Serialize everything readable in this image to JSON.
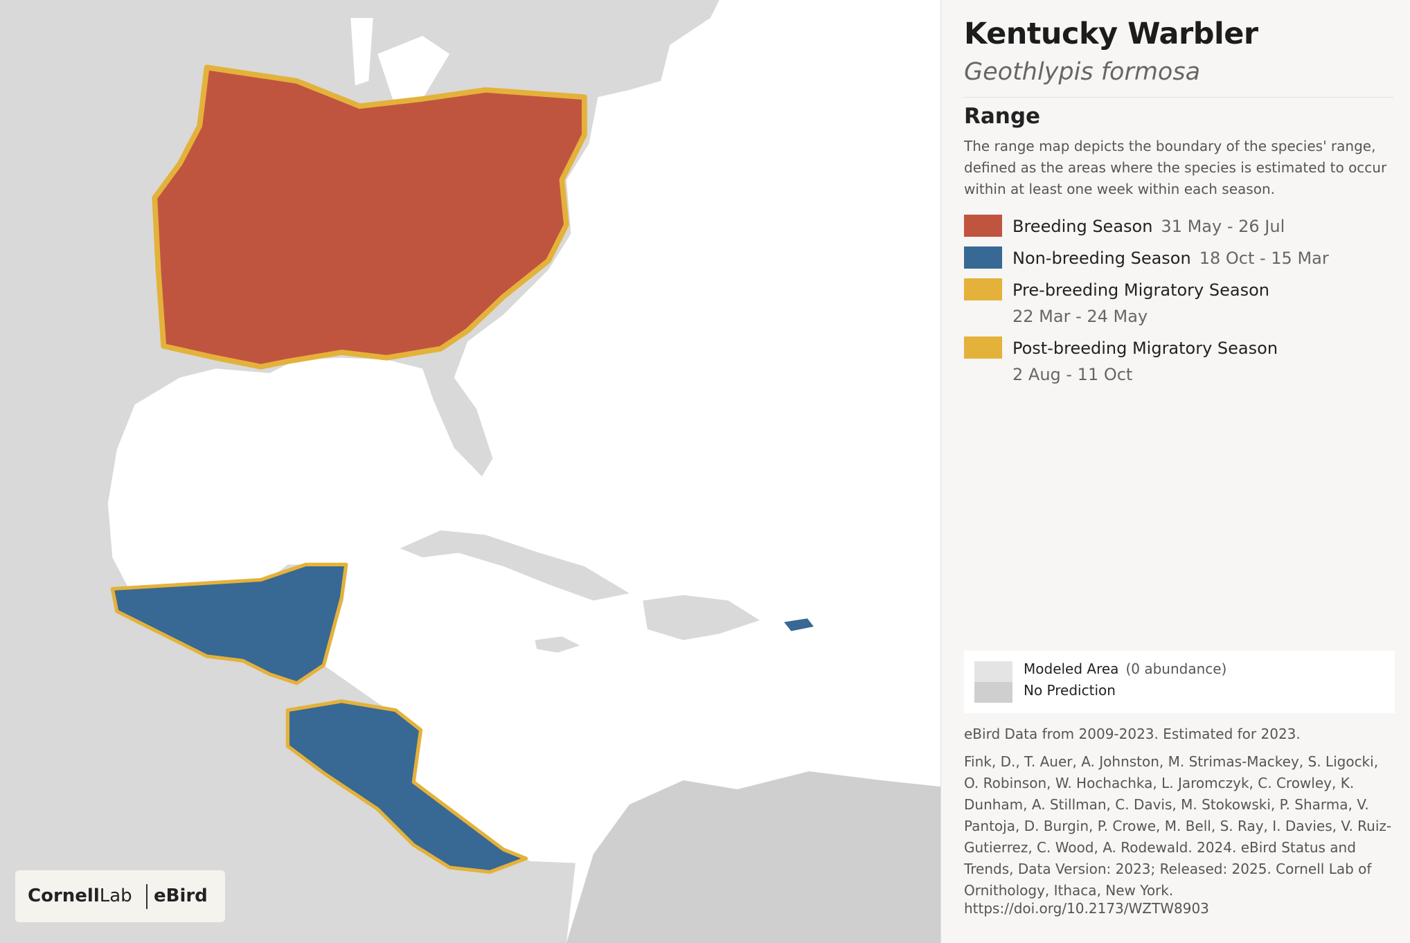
{
  "header": {
    "title": "Kentucky Warbler",
    "subtitle": "Geothlypis formosa"
  },
  "range": {
    "heading": "Range",
    "description": "The range map depicts the boundary of the species' range, defined as the areas where the species is estimated to occur within at least one week within each season.",
    "legend": [
      {
        "label": "Breeding Season",
        "dates": "31 May - 26 Jul",
        "color": "#c0553f"
      },
      {
        "label": "Non-breeding Season",
        "dates": "18 Oct - 15 Mar",
        "color": "#386894"
      },
      {
        "label": "Pre-breeding Migratory Season",
        "dates": "22 Mar - 24 May",
        "color": "#e4b23a"
      },
      {
        "label": "Post-breeding Migratory Season",
        "dates": "2 Aug - 11 Oct",
        "color": "#e4b23a"
      }
    ]
  },
  "model_legend": {
    "modeled": "Modeled Area",
    "modeled_note": "(0 abundance)",
    "no_prediction": "No Prediction"
  },
  "data_note": "eBird Data from 2009-2023. Estimated for 2023.",
  "citation": "Fink, D., T. Auer, A. Johnston, M. Strimas-Mackey, S. Ligocki, O. Robinson, W. Hochachka, L. Jaromczyk, C. Crowley, K. Dunham, A. Stillman, C. Davis, M. Stokowski, P. Sharma, V. Pantoja, D. Burgin, P. Crowe, M. Bell, S. Ray, I. Davies, V. Ruiz-Gutierrez, C. Wood, A. Rodewald. 2024. eBird Status and Trends, Data Version: 2023; Released: 2025. Cornell Lab of Ornithology, Ithaca, New York.",
  "doi": "https://doi.org/10.2173/WZTW8903",
  "logo": {
    "cornell": "Cornell",
    "lab": "Lab",
    "ebird": "eBird"
  }
}
